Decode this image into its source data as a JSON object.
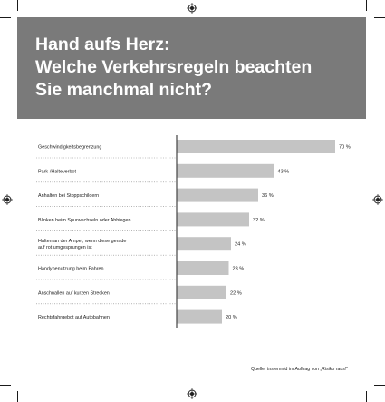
{
  "chart_data": {
    "type": "bar",
    "orientation": "horizontal",
    "title_lines": [
      "Hand aufs Herz:",
      "Welche Verkehrsregeln beachten",
      "Sie manchmal nicht?"
    ],
    "categories": [
      "Geschwindigkeitsbegrenzung",
      "Park-/Halteverbot",
      "Anhalten bei Stoppschildern",
      "Blinken beim Spurwechseln oder Abbiegen",
      [
        "Halten an der Ampel, wenn diese gerade",
        "auf rot umgesprungen ist"
      ],
      "Handybenutzung beim Fahren",
      "Anschnallen auf kurzen Strecken",
      "Rechtsfahrgebot auf Autobahnen"
    ],
    "values": [
      70,
      43,
      36,
      32,
      24,
      23,
      22,
      20
    ],
    "value_labels": [
      "70 %",
      "43 %",
      "36 %",
      "32 %",
      "24 %",
      "23 %",
      "22 %",
      "20 %"
    ],
    "unit": "%",
    "xlim": [
      0,
      70
    ],
    "grid": false,
    "source": "Quelle: tns emnid im Auftrag von „Risiko raus!“",
    "colors": {
      "header": "#7a7a7a",
      "bar": "#c4c4c4",
      "axis": "#444444",
      "leader": "#888888",
      "text": "#222222"
    }
  }
}
